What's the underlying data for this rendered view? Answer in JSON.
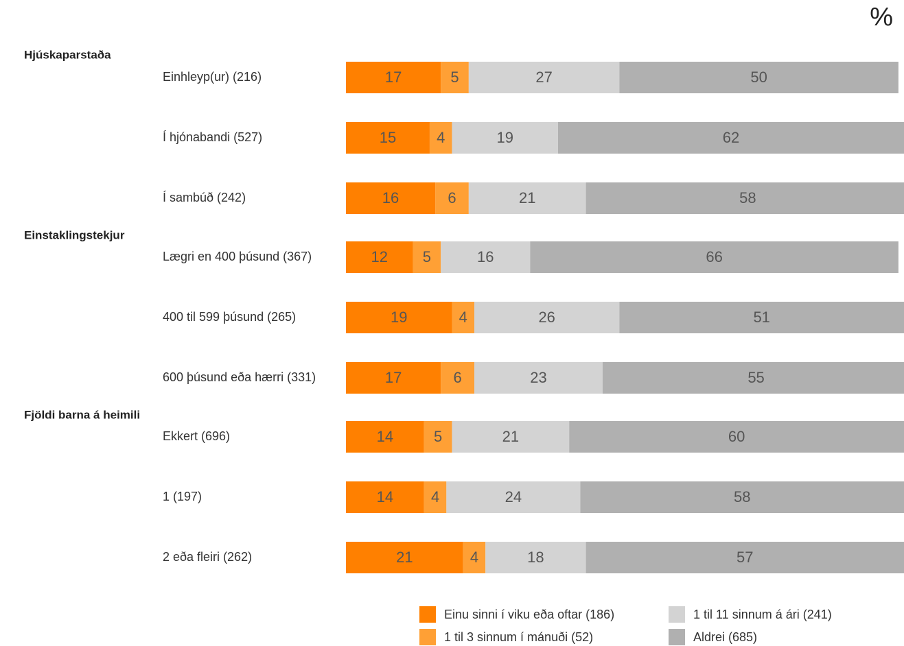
{
  "unit_label": "%",
  "chart_data": {
    "type": "bar",
    "orientation": "horizontal",
    "stacked": true,
    "normalized_percent": true,
    "xlim": [
      0,
      100
    ],
    "groups": [
      {
        "label": "Hjúskaparstaða",
        "rows": [
          "Einhleyp(ur) (216)",
          "Í hjónabandi (527)",
          "Í sambúð (242)"
        ]
      },
      {
        "label": "Einstaklingstekjur",
        "rows": [
          "Lægri en 400 þúsund (367)",
          "400 til 599 þúsund (265)",
          "600 þúsund eða hærri (331)"
        ]
      },
      {
        "label": "Fjöldi barna á heimili",
        "rows": [
          "Ekkert (696)",
          "1 (197)",
          "2 eða fleiri (262)"
        ]
      }
    ],
    "categories": [
      "Einhleyp(ur) (216)",
      "Í hjónabandi (527)",
      "Í sambúð (242)",
      "Lægri en 400 þúsund (367)",
      "400 til 599 þúsund (265)",
      "600 þúsund eða hærri (331)",
      "Ekkert (696)",
      "1 (197)",
      "2 eða fleiri (262)"
    ],
    "series": [
      {
        "name": "Einu sinni í viku eða oftar (186)",
        "color": "#ff8000",
        "values": [
          17,
          15,
          16,
          12,
          19,
          17,
          14,
          14,
          21
        ]
      },
      {
        "name": "1 til 3 sinnum í mánuði (52)",
        "color": "#ffa035",
        "values": [
          5,
          4,
          6,
          5,
          4,
          6,
          5,
          4,
          4
        ]
      },
      {
        "name": "1 til 11 sinnum á ári (241)",
        "color": "#d3d3d3",
        "values": [
          27,
          19,
          21,
          16,
          26,
          23,
          21,
          24,
          18
        ]
      },
      {
        "name": "Aldrei (685)",
        "color": "#b0b0b0",
        "values": [
          50,
          62,
          58,
          66,
          51,
          55,
          60,
          58,
          57
        ]
      }
    ],
    "legend": "bottom-right"
  }
}
